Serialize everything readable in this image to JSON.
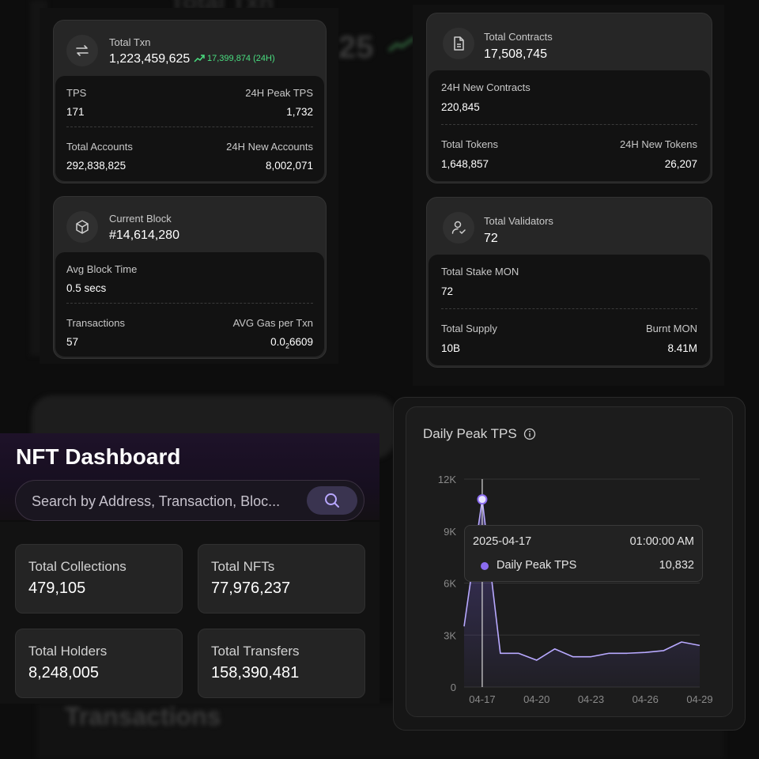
{
  "background": {
    "ghost_top": "Total Txn",
    "ghost_number": "25",
    "ghost_bottom": "Transactions"
  },
  "txn_card": {
    "label": "Total Txn",
    "value": "1,223,459,625",
    "change": "17,399,874 (24H)",
    "icon": "transfer-arrows-icon",
    "rows": [
      {
        "left_label": "TPS",
        "left_value": "171",
        "right_label": "24H Peak TPS",
        "right_value": "1,732"
      },
      {
        "left_label": "Total Accounts",
        "left_value": "292,838,825",
        "right_label": "24H New Accounts",
        "right_value": "8,002,071"
      }
    ]
  },
  "block_card": {
    "label": "Current Block",
    "value": "#14,614,280",
    "icon": "cube-icon",
    "rows": [
      {
        "left_label": "Avg Block Time",
        "left_value": "0.5 secs"
      },
      {
        "left_label": "Transactions",
        "left_value": "57",
        "right_label": "AVG Gas per Txn",
        "right_value_prefix": "0.0",
        "right_value_sub": "2",
        "right_value_suffix": "6609"
      }
    ]
  },
  "contracts_card": {
    "label": "Total Contracts",
    "value": "17,508,745",
    "icon": "document-icon",
    "rows": [
      {
        "left_label": "24H New Contracts",
        "left_value": "220,845"
      },
      {
        "left_label": "Total Tokens",
        "left_value": "1,648,857",
        "right_label": "24H New Tokens",
        "right_value": "26,207"
      }
    ]
  },
  "validators_card": {
    "label": "Total Validators",
    "value": "72",
    "icon": "user-check-icon",
    "rows": [
      {
        "left_label": "Total Stake MON",
        "left_value": "72"
      },
      {
        "left_label": "Total Supply",
        "left_value": "10B",
        "right_label": "Burnt MON",
        "right_value": "8.41M"
      }
    ]
  },
  "nft": {
    "title": "NFT Dashboard",
    "search_placeholder": "Search by Address, Transaction, Bloc...",
    "stats": [
      {
        "label": "Total Collections",
        "value": "479,105"
      },
      {
        "label": "Total NFTs",
        "value": "77,976,237"
      },
      {
        "label": "Total Holders",
        "value": "8,248,005"
      },
      {
        "label": "Total Transfers",
        "value": "158,390,481"
      }
    ]
  },
  "colors": {
    "accent": "#8b6cf0",
    "positive": "#4ade80"
  },
  "chart_data": {
    "type": "area",
    "title": "Daily Peak TPS",
    "x": [
      "04-16",
      "04-17",
      "04-18",
      "04-19",
      "04-20",
      "04-21",
      "04-22",
      "04-23",
      "04-24",
      "04-25",
      "04-26",
      "04-27",
      "04-28",
      "04-29"
    ],
    "x_ticks": [
      "04-17",
      "04-20",
      "04-23",
      "04-26",
      "04-29"
    ],
    "y_ticks": [
      "0",
      "3K",
      "6K",
      "9K",
      "12K"
    ],
    "ylim": [
      0,
      12000
    ],
    "series": [
      {
        "name": "Daily Peak TPS",
        "values": [
          3500,
          10832,
          1950,
          1950,
          1550,
          2200,
          1750,
          1750,
          1950,
          1950,
          2000,
          2100,
          2600,
          2400
        ]
      }
    ],
    "tooltip": {
      "date": "2025-04-17",
      "time": "01:00:00 AM",
      "series": "Daily Peak TPS",
      "value": "10,832"
    }
  }
}
